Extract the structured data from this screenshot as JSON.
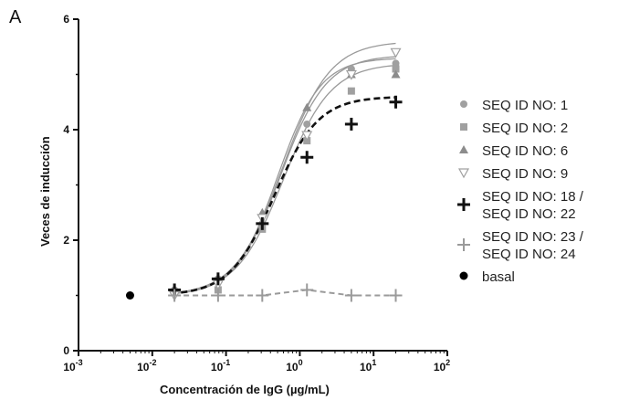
{
  "panel_label": "A",
  "chart_data": {
    "type": "scatter",
    "xlabel": "Concentración de IgG (µg/mL)",
    "ylabel": "Veces de inducción",
    "xscale": "log",
    "xlim": [
      0.001,
      100
    ],
    "ylim": [
      0,
      6
    ],
    "x_ticks": [
      "10-3",
      "10-2",
      "10-1",
      "100",
      "101",
      "102"
    ],
    "y_ticks": [
      "0",
      "2",
      "4",
      "6"
    ],
    "grid": false,
    "legend_placement": "right",
    "series": [
      {
        "name": "SEQ ID NO: 1",
        "color": "#a0a0a0",
        "marker": "circle",
        "line": "solid",
        "x": [
          0.02,
          0.078,
          0.31,
          1.25,
          5,
          20
        ],
        "y": [
          1.1,
          1.3,
          2.3,
          4.1,
          5.1,
          5.2
        ]
      },
      {
        "name": "SEQ ID NO: 2",
        "color": "#a0a0a0",
        "marker": "square",
        "line": "solid",
        "x": [
          0.02,
          0.078,
          0.31,
          1.25,
          5,
          20
        ],
        "y": [
          1.05,
          1.1,
          2.2,
          3.8,
          4.7,
          5.1
        ]
      },
      {
        "name": "SEQ ID NO: 6",
        "color": "#8c8c8c",
        "marker": "triangle-up",
        "line": "solid",
        "x": [
          0.02,
          0.078,
          0.31,
          1.25,
          5,
          20
        ],
        "y": [
          1.1,
          1.3,
          2.5,
          4.4,
          5.0,
          5.0
        ]
      },
      {
        "name": "SEQ ID NO: 9",
        "color": "#a0a0a0",
        "marker": "triangle-down-open",
        "line": "solid",
        "x": [
          0.02,
          0.078,
          0.31,
          1.25,
          5,
          20
        ],
        "y": [
          1.0,
          1.2,
          2.4,
          3.9,
          5.0,
          5.4
        ]
      },
      {
        "name": "SEQ ID NO: 18 /\nSEQ ID NO: 22",
        "color": "#111111",
        "marker": "plus",
        "line": "dashed",
        "x": [
          0.02,
          0.078,
          0.31,
          1.25,
          5,
          20
        ],
        "y": [
          1.1,
          1.3,
          2.3,
          3.5,
          4.1,
          4.5
        ]
      },
      {
        "name": "SEQ ID NO: 23 /\nSEQ ID NO: 24",
        "color": "#9a9a9a",
        "marker": "plus",
        "line": "dashed",
        "x": [
          0.02,
          0.078,
          0.31,
          1.25,
          5,
          20
        ],
        "y": [
          1.0,
          1.0,
          1.0,
          1.1,
          1.0,
          1.0
        ]
      },
      {
        "name": "basal",
        "color": "#000000",
        "marker": "dot",
        "line": "none",
        "x": [
          0.005
        ],
        "y": [
          1.0
        ]
      }
    ]
  }
}
